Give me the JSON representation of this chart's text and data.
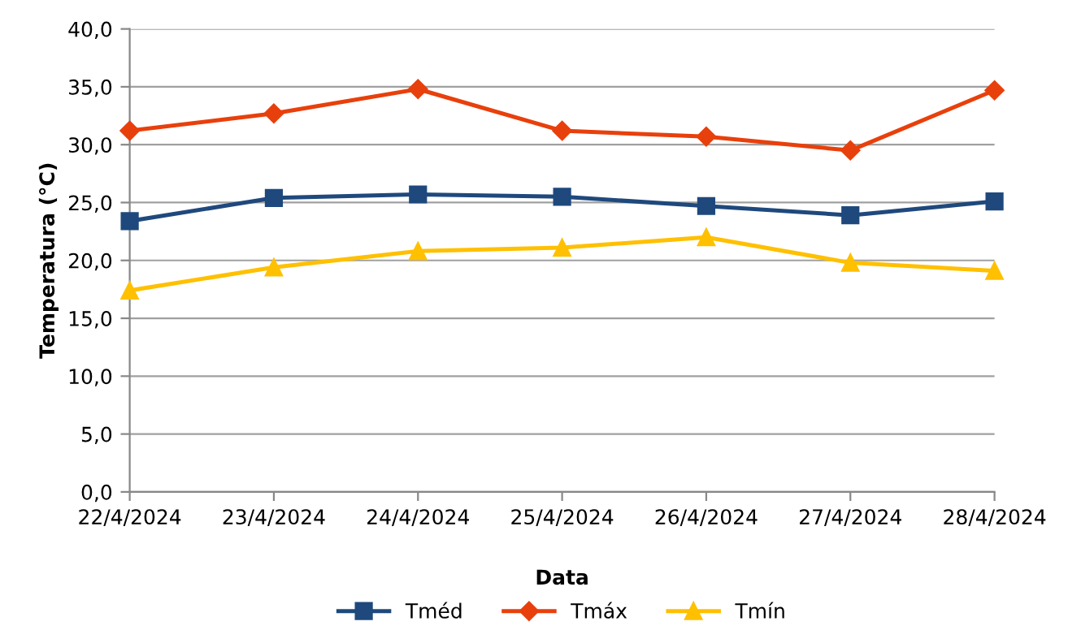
{
  "chart_data": {
    "type": "line",
    "xlabel": "Data",
    "ylabel": "Temperatura (°C)",
    "categories": [
      "22/4/2024",
      "23/4/2024",
      "24/4/2024",
      "25/4/2024",
      "26/4/2024",
      "27/4/2024",
      "28/4/2024"
    ],
    "series": [
      {
        "name": "Tméd",
        "color": "#1f497d",
        "marker": "square",
        "values": [
          23.4,
          25.4,
          25.7,
          25.5,
          24.7,
          23.9,
          25.1
        ]
      },
      {
        "name": "Tmáx",
        "color": "#e8400c",
        "marker": "diamond",
        "values": [
          31.2,
          32.7,
          34.8,
          31.2,
          30.7,
          29.5,
          34.7
        ]
      },
      {
        "name": "Tmín",
        "color": "#ffc000",
        "marker": "triangle",
        "values": [
          17.4,
          19.4,
          20.8,
          21.1,
          22.0,
          19.8,
          19.1
        ]
      }
    ],
    "ylim": [
      0,
      40
    ],
    "yticks": [
      {
        "value": 0,
        "label": "0,0"
      },
      {
        "value": 5,
        "label": "5,0"
      },
      {
        "value": 10,
        "label": "10,0"
      },
      {
        "value": 15,
        "label": "15,0"
      },
      {
        "value": 20,
        "label": "20,0"
      },
      {
        "value": 25,
        "label": "25,0"
      },
      {
        "value": 30,
        "label": "30,0"
      },
      {
        "value": 35,
        "label": "35,0"
      },
      {
        "value": 40,
        "label": "40,0"
      }
    ],
    "grid": "y",
    "legend": "bottom",
    "line_style": "solid"
  }
}
